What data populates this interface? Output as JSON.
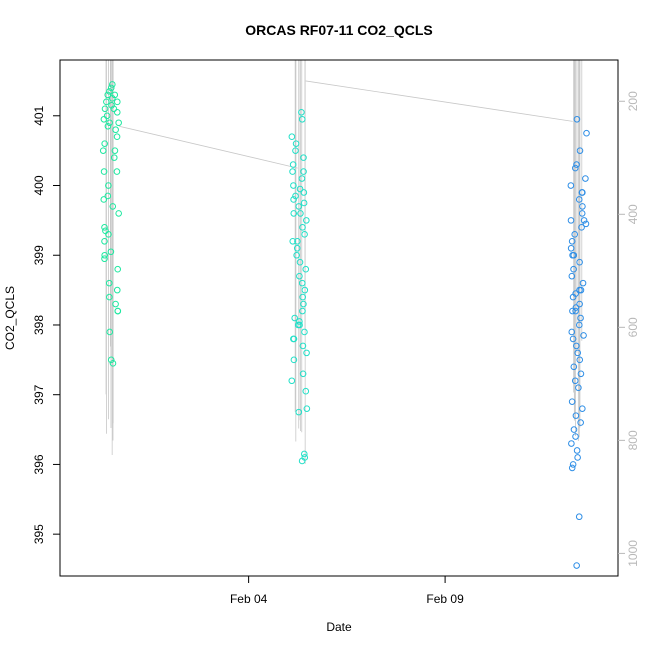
{
  "chart_data": {
    "type": "scatter",
    "title": "ORCAS RF07-11 CO2_QCLS",
    "xlabel": "Date",
    "ylabel": "CO2_QCLS",
    "x_ticks": [
      {
        "day": 4,
        "label": "Feb 04"
      },
      {
        "day": 9,
        "label": "Feb 09"
      }
    ],
    "xlim": [
      -0.8,
      13.4
    ],
    "ylim": [
      394.4,
      401.8
    ],
    "y_ticks": [
      395,
      396,
      397,
      398,
      399,
      400,
      401
    ],
    "right_axis": {
      "color": "#b8b8b8",
      "ticks": [
        200,
        400,
        600,
        800,
        1000
      ],
      "range_top": 127,
      "range_bottom": 1040,
      "inverted": true
    },
    "series": [
      {
        "flight_day": 0.5,
        "color": "#1EE8A0",
        "values": [
          401.3,
          401.25,
          401.2,
          401.15,
          401.1,
          401.05,
          401.0,
          400.95,
          400.9,
          400.85,
          400.8,
          400.7,
          400.6,
          400.5,
          400.4,
          400.2,
          400.0,
          399.85,
          399.7,
          399.6,
          399.4,
          399.35,
          399.2,
          399.05,
          399.0,
          398.95,
          398.8,
          398.5,
          398.4,
          398.3,
          398.2,
          397.9,
          397.5,
          397.45,
          401.45,
          401.4,
          401.35,
          401.3,
          401.2,
          401.1,
          400.9,
          400.5,
          400.2,
          399.8,
          399.3,
          398.6,
          398.2
        ]
      },
      {
        "flight_day": 5.3,
        "color": "#22E0C8",
        "values": [
          401.05,
          400.95,
          400.7,
          400.5,
          400.3,
          400.2,
          400.1,
          400.0,
          399.95,
          399.85,
          399.8,
          399.75,
          399.7,
          399.6,
          399.5,
          399.4,
          399.3,
          399.2,
          399.1,
          399.0,
          398.9,
          398.8,
          398.7,
          398.5,
          398.4,
          398.3,
          398.2,
          398.1,
          398.05,
          398.0,
          397.9,
          397.8,
          397.7,
          397.6,
          397.5,
          397.3,
          397.2,
          397.05,
          396.8,
          396.75,
          396.15,
          396.1,
          396.05,
          400.6,
          400.4,
          400.2,
          399.9,
          399.6,
          399.2,
          398.6,
          398.0,
          397.8
        ]
      },
      {
        "flight_day": 12.4,
        "color": "#2E8EE6",
        "values": [
          400.95,
          400.75,
          400.5,
          400.3,
          400.25,
          400.1,
          400.0,
          399.9,
          399.8,
          399.7,
          399.6,
          399.5,
          399.45,
          399.4,
          399.3,
          399.2,
          399.1,
          399.0,
          398.9,
          398.8,
          398.7,
          398.6,
          398.5,
          398.45,
          398.4,
          398.3,
          398.25,
          398.2,
          398.1,
          398.0,
          397.9,
          397.8,
          397.7,
          397.6,
          397.5,
          397.4,
          397.3,
          397.2,
          397.1,
          396.9,
          396.8,
          396.6,
          396.5,
          396.4,
          396.3,
          396.2,
          396.1,
          396.0,
          395.95,
          395.25,
          394.55,
          399.9,
          399.5,
          399.0,
          398.5,
          398.2,
          397.85,
          396.7
        ]
      }
    ],
    "trace_color": "#c8c8c8"
  }
}
